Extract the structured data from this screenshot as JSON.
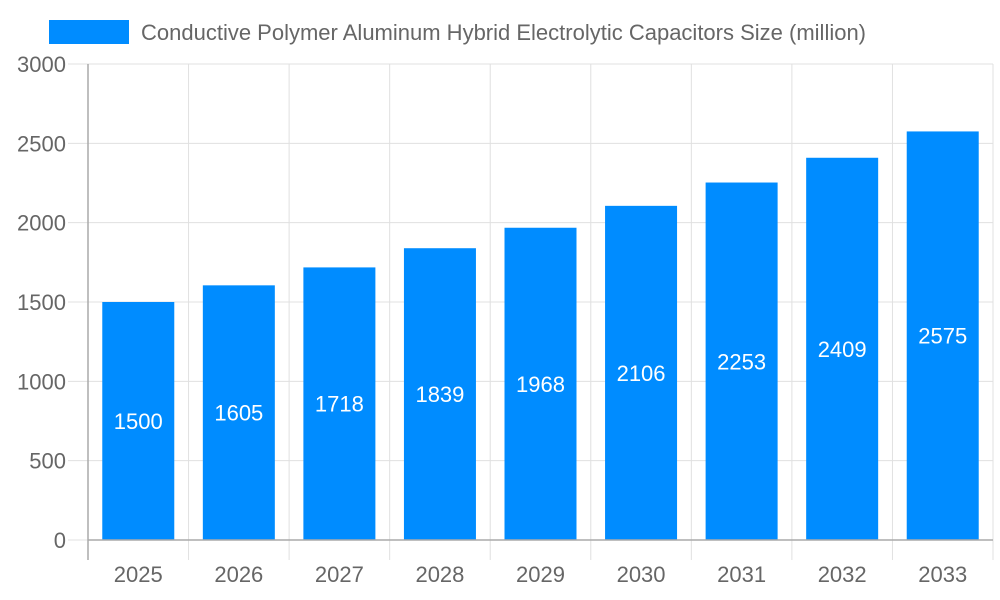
{
  "chart_data": {
    "type": "bar",
    "categories": [
      "2025",
      "2026",
      "2027",
      "2028",
      "2029",
      "2030",
      "2031",
      "2032",
      "2033"
    ],
    "series": [
      {
        "name": "Conductive Polymer Aluminum Hybrid Electrolytic Capacitors Size (million)",
        "values": [
          1500,
          1605,
          1718,
          1839,
          1968,
          2106,
          2253,
          2409,
          2575
        ],
        "color": "#008cff"
      }
    ],
    "data_labels": [
      "1500",
      "1605",
      "1718",
      "1839",
      "1968",
      "2106",
      "2253",
      "2409",
      "2575"
    ],
    "yticks": [
      "0",
      "500",
      "1000",
      "1500",
      "2000",
      "2500",
      "3000"
    ],
    "ylim": [
      0,
      3000
    ],
    "grid": true,
    "legend_position": "top"
  }
}
